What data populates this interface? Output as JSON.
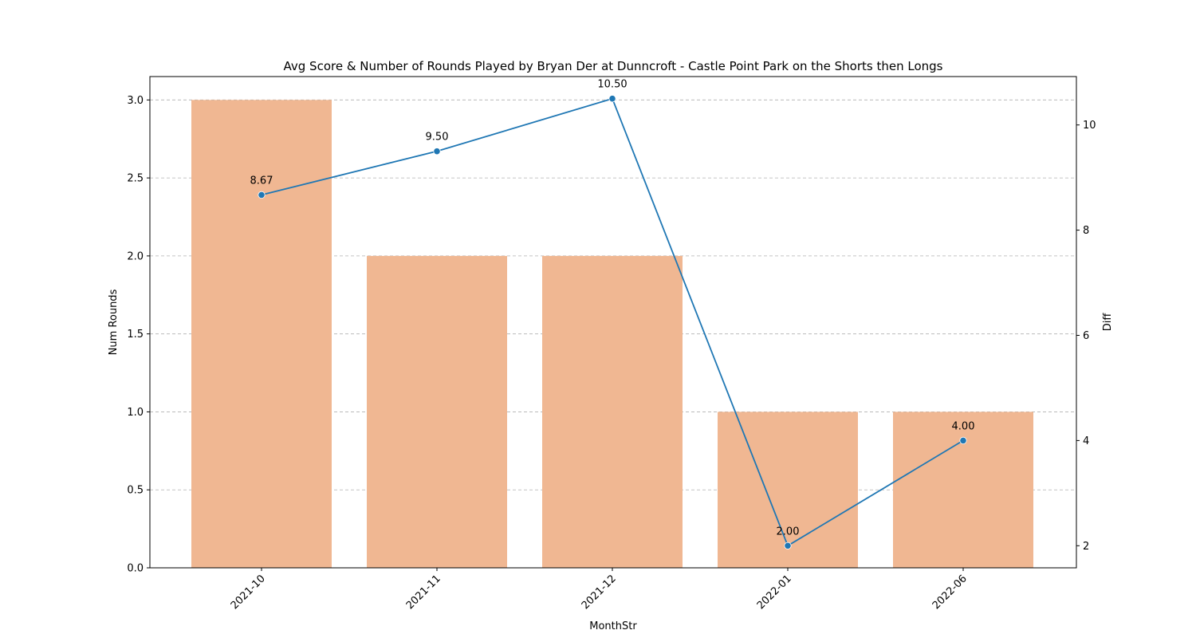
{
  "chart_data": {
    "type": "bar+line",
    "title": "Avg Score & Number of Rounds Played by Bryan Der at Dunncroft - Castle Point Park on the Shorts then Longs",
    "xlabel": "MonthStr",
    "ylabel": "Num Rounds",
    "y2label": "Diff",
    "categories": [
      "2021-10",
      "2021-11",
      "2021-12",
      "2022-01",
      "2022-06"
    ],
    "bars": {
      "name": "Num Rounds",
      "values": [
        3,
        2,
        2,
        1,
        1
      ],
      "color": "#f0b792"
    },
    "line": {
      "name": "Diff",
      "values": [
        8.67,
        9.5,
        10.5,
        2.0,
        4.0
      ],
      "labels": [
        "8.67",
        "9.50",
        "10.50",
        "2.00",
        "4.00"
      ],
      "color": "#1f77b4"
    },
    "ylim": [
      0,
      3.15
    ],
    "yticks": [
      0.0,
      0.5,
      1.0,
      1.5,
      2.0,
      2.5,
      3.0
    ],
    "ytick_labels": [
      "0.0",
      "0.5",
      "1.0",
      "1.5",
      "2.0",
      "2.5",
      "3.0"
    ],
    "y2lim": [
      1.58,
      10.92
    ],
    "y2ticks": [
      2,
      4,
      6,
      8,
      10
    ],
    "y2tick_labels": [
      "2",
      "4",
      "6",
      "8",
      "10"
    ],
    "grid": true,
    "xtick_rotation": 45
  }
}
